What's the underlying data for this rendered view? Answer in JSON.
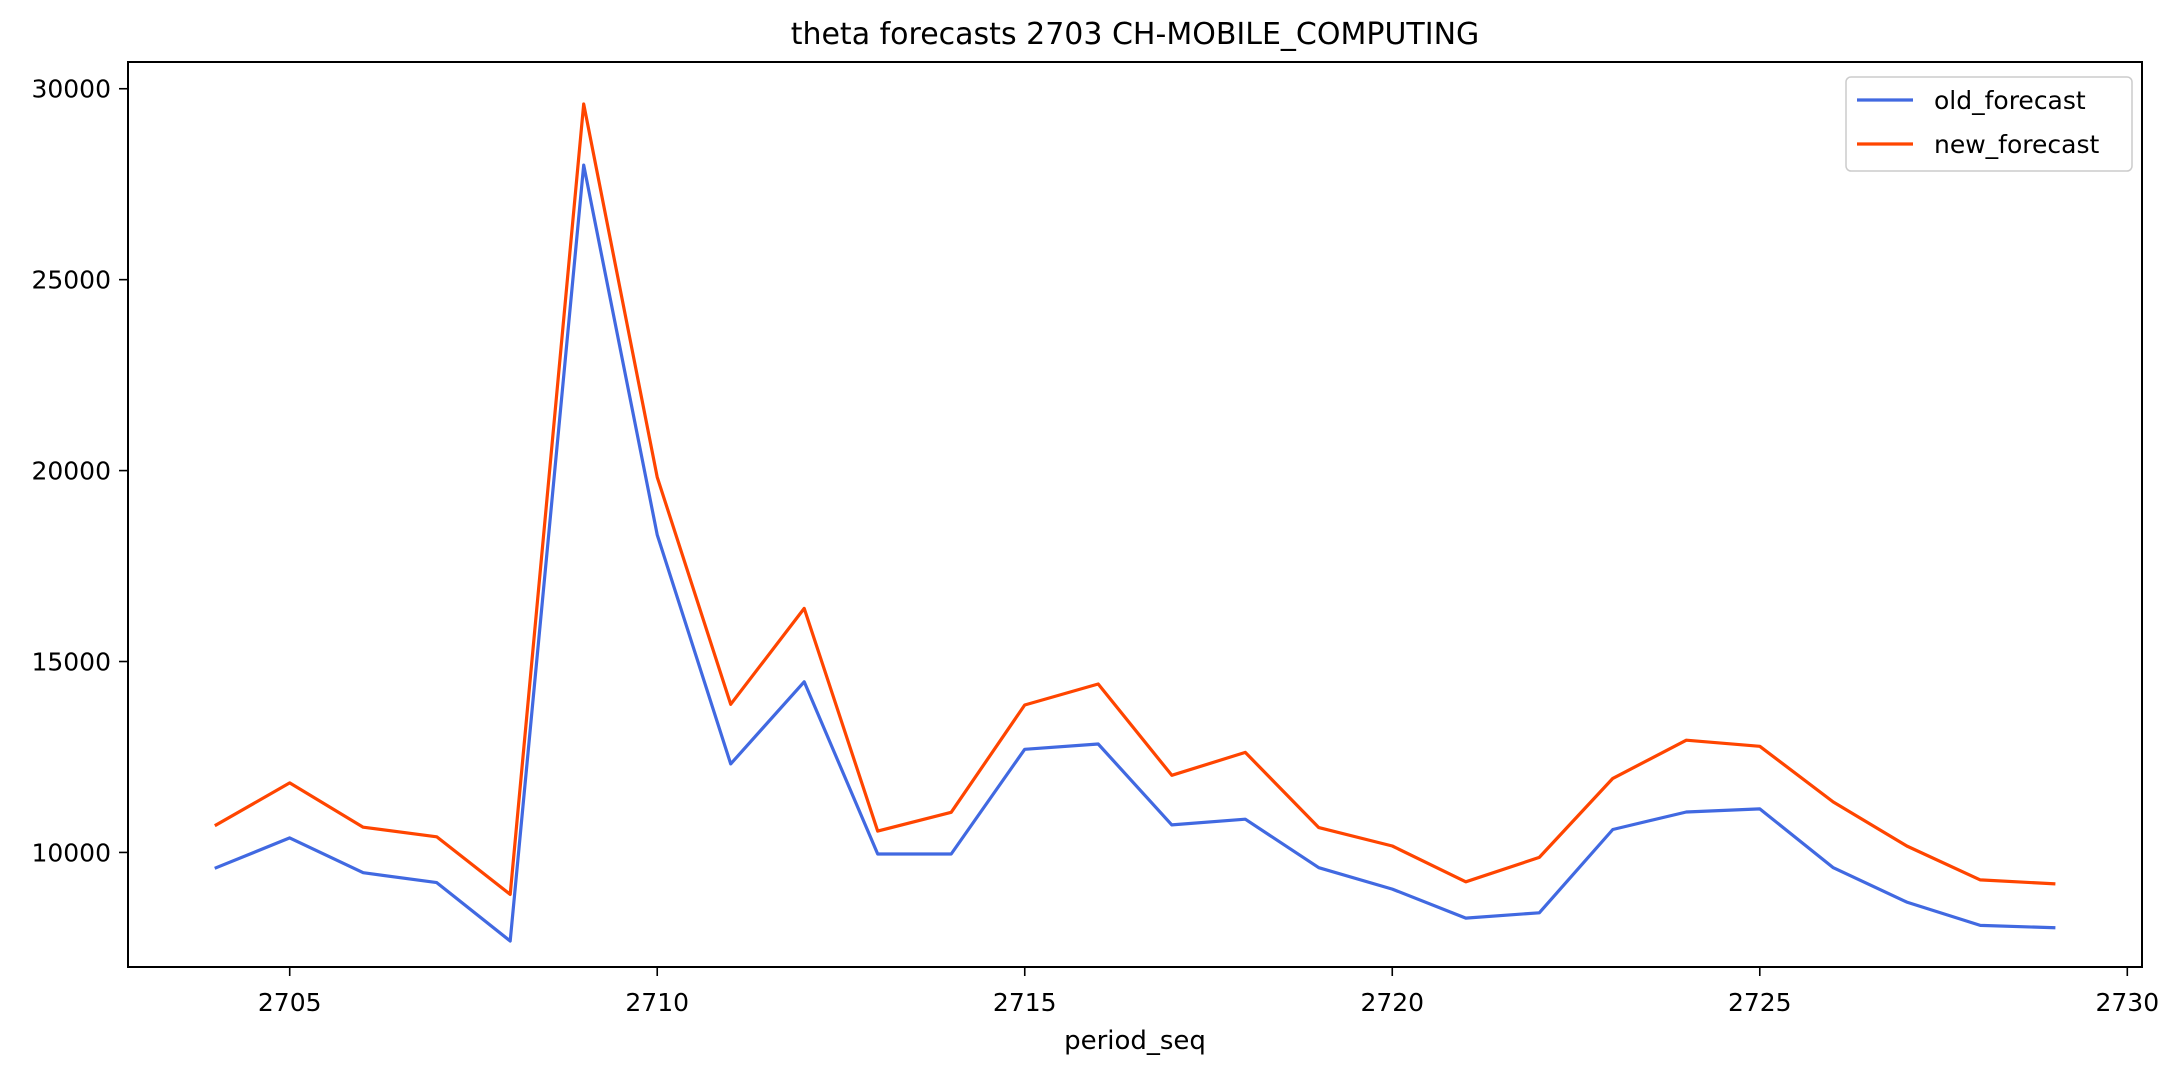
{
  "chart_data": {
    "type": "line",
    "title": "theta forecasts 2703 CH-MOBILE_COMPUTING",
    "xlabel": "period_seq",
    "ylabel": "",
    "xlim": [
      2702.8,
      2730.2
    ],
    "ylim": [
      7000,
      30700
    ],
    "xticks": [
      2705,
      2710,
      2715,
      2720,
      2725,
      2730
    ],
    "yticks": [
      10000,
      15000,
      20000,
      25000,
      30000
    ],
    "x": [
      2704,
      2705,
      2706,
      2707,
      2708,
      2709,
      2710,
      2711,
      2712,
      2713,
      2714,
      2715,
      2716,
      2717,
      2718,
      2719,
      2720,
      2721,
      2722,
      2723,
      2724,
      2725,
      2726,
      2727,
      2728,
      2729
    ],
    "series": [
      {
        "name": "old_forecast",
        "color": "#4169e1",
        "values": [
          9600,
          10380,
          9470,
          9210,
          7680,
          28000,
          18320,
          12320,
          14470,
          9960,
          9960,
          12700,
          12840,
          10720,
          10870,
          9600,
          9040,
          8280,
          8420,
          10600,
          11060,
          11140,
          9600,
          8700,
          8090,
          8030
        ]
      },
      {
        "name": "new_forecast",
        "color": "#ff4500",
        "values": [
          10720,
          11820,
          10660,
          10410,
          8900,
          29600,
          19830,
          13880,
          16390,
          10560,
          11050,
          13860,
          14410,
          12020,
          12620,
          10650,
          10170,
          9230,
          9870,
          11940,
          12940,
          12780,
          11320,
          10170,
          9280,
          9180
        ]
      }
    ],
    "legend": {
      "position": "top-right"
    },
    "grid": false
  }
}
